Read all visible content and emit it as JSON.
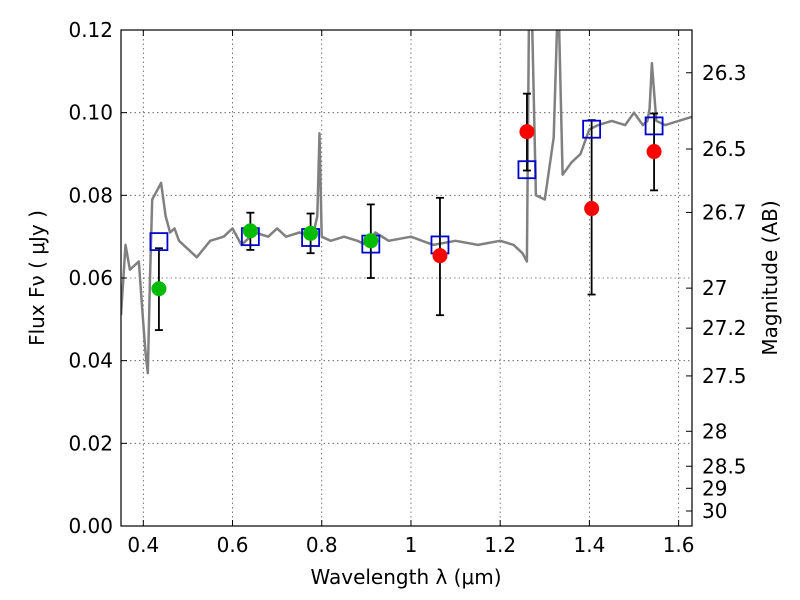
{
  "chart_data": {
    "type": "scatter",
    "xlabel": "Wavelength  λ (μm)",
    "ylabel": "Flux  Fν  ( μJy )",
    "ylabel_right": "Magnitude (AB)",
    "xlim": [
      0.35,
      1.63
    ],
    "ylim": [
      0.0,
      0.12
    ],
    "x_ticks": [
      0.4,
      0.6,
      0.8,
      1.0,
      1.2,
      1.4,
      1.6
    ],
    "x_tick_labels": [
      "0.4",
      "0.6",
      "0.8",
      "1",
      "1.2",
      "1.4",
      "1.6"
    ],
    "y_ticks": [
      0.0,
      0.02,
      0.04,
      0.06,
      0.08,
      0.1,
      0.12
    ],
    "y_tick_labels": [
      "0.00",
      "0.02",
      "0.04",
      "0.06",
      "0.08",
      "0.10",
      "0.12"
    ],
    "right_ticks": [
      26.3,
      26.5,
      26.7,
      27,
      27.2,
      27.5,
      28,
      28.5,
      29,
      30
    ],
    "right_tick_labels": [
      "26.3",
      "26.5",
      "26.7",
      "27",
      "27.2",
      "27.5",
      "28",
      "28.5",
      "29",
      "30"
    ],
    "grid": true,
    "colors": {
      "sed": "#808080",
      "model": "#0000cc",
      "green": "#00bb00",
      "red": "#ff0000",
      "error": "#000000"
    },
    "series": [
      {
        "kind": "line",
        "x": [
          0.35,
          0.36,
          0.37,
          0.38,
          0.39,
          0.4,
          0.405,
          0.41,
          0.415,
          0.42,
          0.43,
          0.44,
          0.45,
          0.46,
          0.47,
          0.48,
          0.5,
          0.52,
          0.55,
          0.58,
          0.6,
          0.62,
          0.65,
          0.68,
          0.7,
          0.72,
          0.75,
          0.78,
          0.79,
          0.795,
          0.8,
          0.82,
          0.85,
          0.88,
          0.9,
          0.92,
          0.95,
          1.0,
          1.05,
          1.1,
          1.15,
          1.2,
          1.23,
          1.25,
          1.26,
          1.265,
          1.27,
          1.28,
          1.3,
          1.32,
          1.33,
          1.34,
          1.36,
          1.38,
          1.4,
          1.42,
          1.45,
          1.48,
          1.5,
          1.52,
          1.53,
          1.535,
          1.54,
          1.55,
          1.57,
          1.6,
          1.63
        ],
        "y": [
          0.051,
          0.068,
          0.062,
          0.063,
          0.064,
          0.049,
          0.042,
          0.037,
          0.06,
          0.079,
          0.081,
          0.083,
          0.075,
          0.071,
          0.072,
          0.069,
          0.067,
          0.065,
          0.069,
          0.07,
          0.072,
          0.068,
          0.071,
          0.07,
          0.072,
          0.07,
          0.071,
          0.07,
          0.075,
          0.095,
          0.07,
          0.069,
          0.07,
          0.069,
          0.068,
          0.071,
          0.069,
          0.07,
          0.068,
          0.069,
          0.068,
          0.069,
          0.068,
          0.066,
          0.064,
          0.13,
          0.13,
          0.08,
          0.079,
          0.094,
          0.13,
          0.085,
          0.088,
          0.09,
          0.096,
          0.097,
          0.098,
          0.097,
          0.1,
          0.097,
          0.098,
          0.101,
          0.112,
          0.098,
          0.097,
          0.098,
          0.099
        ]
      },
      {
        "kind": "open-square",
        "x": [
          0.435,
          0.64,
          0.775,
          0.91,
          1.065,
          1.26,
          1.405,
          1.545
        ],
        "y": [
          0.0688,
          0.07,
          0.0698,
          0.0682,
          0.068,
          0.0862,
          0.096,
          0.0968
        ]
      },
      {
        "kind": "filled-circle",
        "color": "green",
        "x": [
          0.435,
          0.64,
          0.775,
          0.91
        ],
        "y": [
          0.0574,
          0.0714,
          0.0708,
          0.069
        ],
        "yerr_low": [
          0.0474,
          0.0668,
          0.066,
          0.06
        ],
        "yerr_high": [
          0.0672,
          0.0758,
          0.0756,
          0.0778
        ]
      },
      {
        "kind": "filled-circle",
        "color": "red",
        "x": [
          1.065,
          1.26,
          1.405,
          1.545
        ],
        "y": [
          0.0654,
          0.0954,
          0.0768,
          0.0906
        ],
        "yerr_low": [
          0.051,
          0.086,
          0.056,
          0.0812
        ],
        "yerr_high": [
          0.0794,
          0.1046,
          0.0982,
          0.0998
        ]
      }
    ]
  }
}
